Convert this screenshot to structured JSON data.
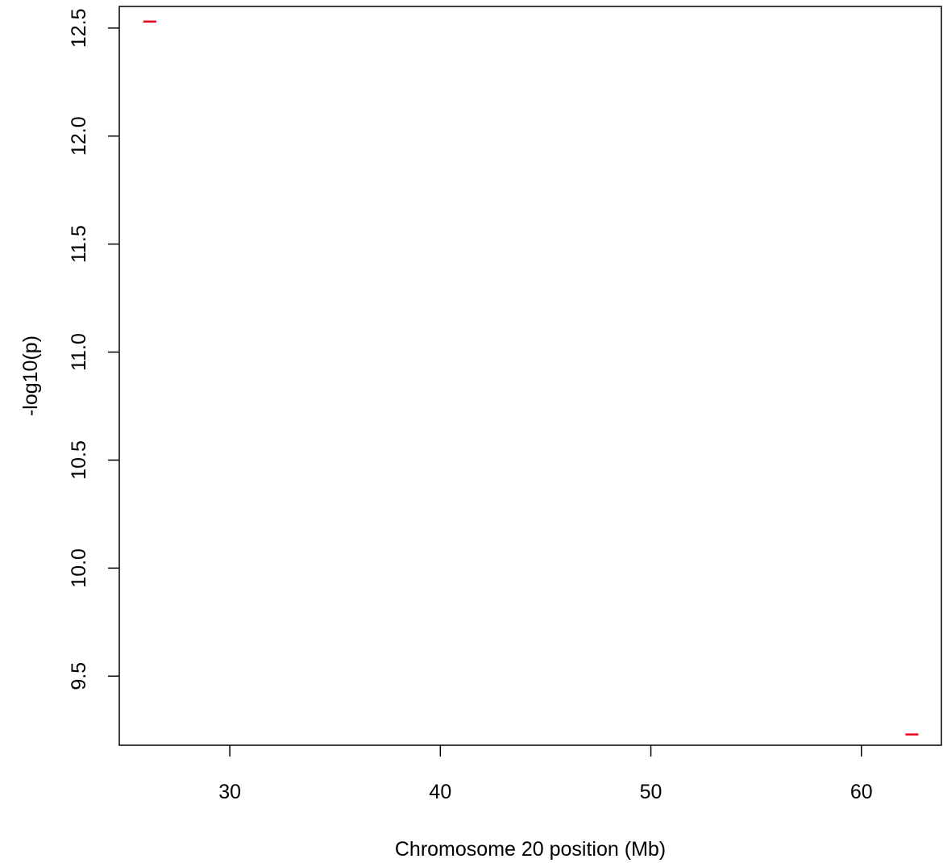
{
  "chart_data": {
    "type": "scatter",
    "title": "",
    "xlabel": "Chromosome 20 position (Mb)",
    "ylabel": "-log10(p)",
    "xlim": [
      24.75,
      63.8
    ],
    "ylim": [
      9.18,
      12.6
    ],
    "x_ticks": [
      {
        "value": 30,
        "label": "30"
      },
      {
        "value": 40,
        "label": "40"
      },
      {
        "value": 50,
        "label": "50"
      },
      {
        "value": 60,
        "label": "60"
      }
    ],
    "y_ticks": [
      {
        "value": 9.5,
        "label": "9.5"
      },
      {
        "value": 10.0,
        "label": "10.0"
      },
      {
        "value": 10.5,
        "label": "10.5"
      },
      {
        "value": 11.0,
        "label": "11.0"
      },
      {
        "value": 11.5,
        "label": "11.5"
      },
      {
        "value": 12.0,
        "label": "12.0"
      },
      {
        "value": 12.5,
        "label": "12.5"
      }
    ],
    "marker": "dash",
    "color": "#e8001c",
    "grid": false,
    "legend": "none",
    "series": [
      {
        "points": [
          {
            "x": 26.2,
            "y": 12.53
          },
          {
            "x": 62.4,
            "y": 9.23
          }
        ]
      }
    ]
  }
}
